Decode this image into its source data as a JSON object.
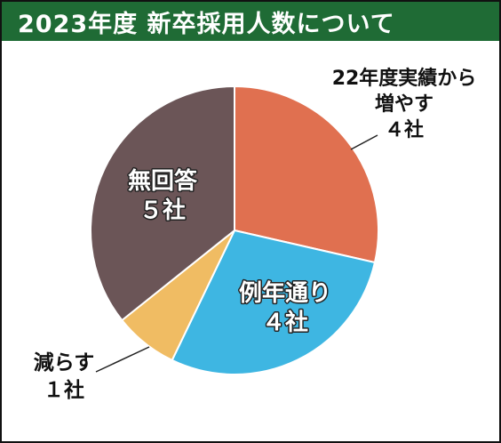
{
  "title": "2023年度  新卒採用人数について",
  "chart_data": {
    "type": "pie",
    "title": "2023年度  新卒採用人数について",
    "unit": "社",
    "slices": [
      {
        "name": "22年度実績から増やす",
        "label_lines": [
          "22年度実績から",
          "増やす",
          "４社"
        ],
        "value": 4,
        "color": "#e07050"
      },
      {
        "name": "例年通り",
        "label_lines": [
          "例年通り",
          "４社"
        ],
        "value": 4,
        "color": "#3eb6e2"
      },
      {
        "name": "減らす",
        "label_lines": [
          "減らす",
          "１社"
        ],
        "value": 1,
        "color": "#f0bc63"
      },
      {
        "name": "無回答",
        "label_lines": [
          "無回答",
          "５社"
        ],
        "value": 5,
        "color": "#6b5557"
      }
    ]
  }
}
